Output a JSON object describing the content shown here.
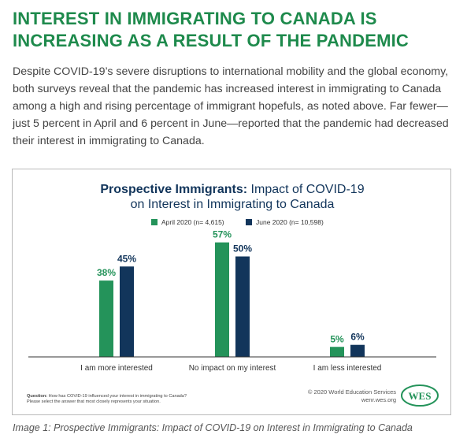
{
  "article": {
    "heading_line1": "INTEREST IN IMMIGRATING TO CANADA IS",
    "heading_line2": "INCREASING AS A RESULT OF THE PANDEMIC",
    "paragraph": "Despite COVID-19’s severe disruptions to international mobility and the global economy, both surveys reveal that the pandemic has increased interest in immigrating to Canada among a high and rising percentage of immigrant hopefuls, as noted above. Far fewer—just 5 percent in April and 6 percent in June—reported that the pandemic had decreased their interest in immigrating to Canada.",
    "caption": "Image 1: Prospective Immigrants: Impact of COVID-19 on Interest in Immigrating to Canada"
  },
  "chart_data": {
    "type": "bar",
    "title_bold": "Prospective Immigrants:",
    "title_rest": " Impact of COVID-19",
    "title_line2": "on Interest in Immigrating to Canada",
    "categories": [
      "I am more interested",
      "No impact on my interest",
      "I am less interested"
    ],
    "series": [
      {
        "name": "April 2020 (n= 4,615)",
        "color": "#24935a",
        "values": [
          38,
          57,
          5
        ],
        "labels": [
          "38%",
          "57%",
          "5%"
        ]
      },
      {
        "name": "June 2020 (n= 10,598)",
        "color": "#12355b",
        "values": [
          45,
          50,
          6
        ],
        "labels": [
          "45%",
          "50%",
          "6%"
        ]
      }
    ],
    "ylim": [
      0,
      60
    ],
    "grid": false,
    "legend_position": "top-center",
    "footnote_bold": "Question:",
    "footnote_line1": " How has COVID-19 influenced your interest in immigrating to Canada?",
    "footnote_line2": "Please select the answer that most closely represents your situation.",
    "copyright_line1": "© 2020 World Education Services",
    "copyright_line2": "wenr.wes.org",
    "logo_text": "WES",
    "colors": {
      "title_navy": "#12355b",
      "heading_green": "#1e8a4c"
    }
  }
}
